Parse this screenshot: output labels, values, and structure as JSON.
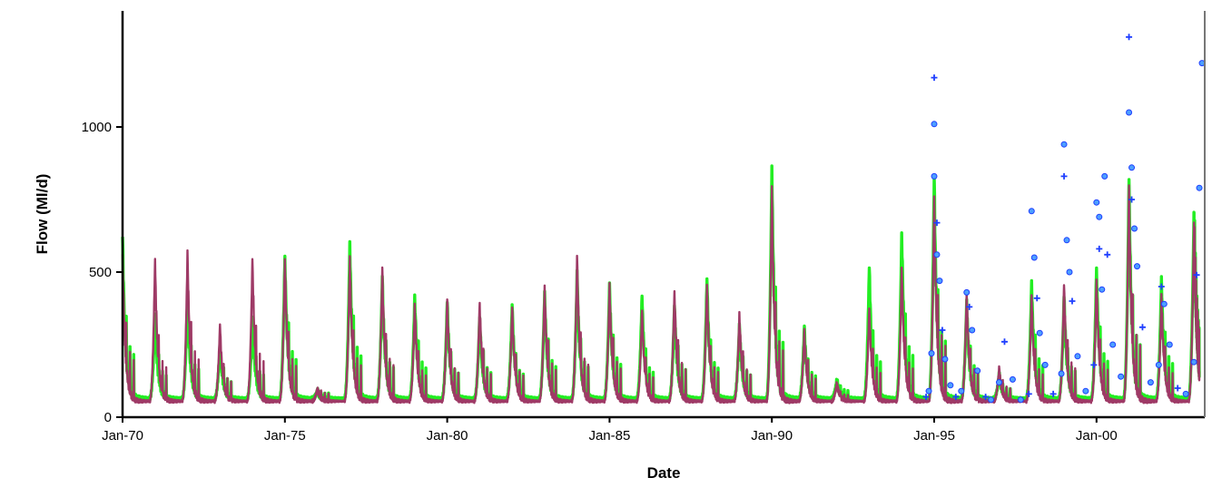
{
  "chart_data": {
    "type": "line",
    "title": "",
    "xlabel": "Date",
    "ylabel": "Flow (Ml/d)",
    "ylim": [
      0,
      1400
    ],
    "xlim": [
      "1970-01",
      "2003-05"
    ],
    "x_ticks": [
      {
        "date": "1970-01",
        "label": "Jan-70"
      },
      {
        "date": "1975-01",
        "label": "Jan-75"
      },
      {
        "date": "1980-01",
        "label": "Jan-80"
      },
      {
        "date": "1985-01",
        "label": "Jan-85"
      },
      {
        "date": "1990-01",
        "label": "Jan-90"
      },
      {
        "date": "1995-01",
        "label": "Jan-95"
      },
      {
        "date": "2000-01",
        "label": "Jan-00"
      }
    ],
    "y_ticks": [
      0,
      500,
      1000
    ],
    "grid": false,
    "legend": "none",
    "colors": {
      "modelled": "#22ee22",
      "simulated": "#9e3a66",
      "observed": "#1f3fff",
      "axis": "#000000"
    },
    "series": [
      {
        "key": "modelled",
        "style": "line",
        "peaks": [
          [
            "1970-01",
            620
          ],
          [
            "1971-01",
            350
          ],
          [
            "1972-01",
            420
          ],
          [
            "1973-01",
            250
          ],
          [
            "1974-01",
            350
          ],
          [
            "1975-01",
            560
          ],
          [
            "1976-01",
            90
          ],
          [
            "1977-01",
            600
          ],
          [
            "1978-01",
            480
          ],
          [
            "1979-01",
            420
          ],
          [
            "1980-01",
            400
          ],
          [
            "1981-01",
            350
          ],
          [
            "1982-01",
            390
          ],
          [
            "1983-01",
            430
          ],
          [
            "1984-01",
            500
          ],
          [
            "1985-01",
            460
          ],
          [
            "1986-01",
            420
          ],
          [
            "1987-01",
            390
          ],
          [
            "1988-01",
            480
          ],
          [
            "1989-01",
            320
          ],
          [
            "1990-01",
            860
          ],
          [
            "1991-01",
            310
          ],
          [
            "1992-01",
            130
          ],
          [
            "1993-01",
            520
          ],
          [
            "1994-01",
            640
          ],
          [
            "1995-01",
            830
          ],
          [
            "1996-01",
            400
          ],
          [
            "1997-01",
            150
          ],
          [
            "1998-01",
            470
          ],
          [
            "1999-01",
            420
          ],
          [
            "2000-01",
            520
          ],
          [
            "2001-01",
            820
          ],
          [
            "2002-01",
            480
          ],
          [
            "2003-01",
            700
          ]
        ],
        "baseline": 65
      },
      {
        "key": "simulated",
        "style": "line",
        "peaks": [
          [
            "1970-01",
            560
          ],
          [
            "1971-01",
            540
          ],
          [
            "1972-01",
            570
          ],
          [
            "1973-01",
            320
          ],
          [
            "1974-01",
            550
          ],
          [
            "1975-01",
            550
          ],
          [
            "1976-01",
            100
          ],
          [
            "1977-01",
            550
          ],
          [
            "1978-01",
            510
          ],
          [
            "1979-01",
            390
          ],
          [
            "1980-01",
            410
          ],
          [
            "1981-01",
            400
          ],
          [
            "1982-01",
            380
          ],
          [
            "1983-01",
            450
          ],
          [
            "1984-01",
            550
          ],
          [
            "1985-01",
            460
          ],
          [
            "1986-01",
            370
          ],
          [
            "1987-01",
            440
          ],
          [
            "1988-01",
            460
          ],
          [
            "1989-01",
            360
          ],
          [
            "1990-01",
            790
          ],
          [
            "1991-01",
            300
          ],
          [
            "1992-01",
            120
          ],
          [
            "1993-01",
            380
          ],
          [
            "1994-01",
            520
          ],
          [
            "1995-01",
            760
          ],
          [
            "1996-01",
            430
          ],
          [
            "1997-01",
            170
          ],
          [
            "1998-01",
            420
          ],
          [
            "1999-01",
            460
          ],
          [
            "2000-01",
            480
          ],
          [
            "2001-01",
            800
          ],
          [
            "2002-01",
            420
          ],
          [
            "2003-01",
            660
          ]
        ],
        "baseline": 55
      },
      {
        "key": "observed",
        "style": "markers",
        "points": [
          [
            "1994-10",
            70
          ],
          [
            "1994-11",
            90
          ],
          [
            "1994-12",
            220
          ],
          [
            "1995-01",
            1170
          ],
          [
            "1995-01",
            1010
          ],
          [
            "1995-01",
            830
          ],
          [
            "1995-02",
            670
          ],
          [
            "1995-02",
            560
          ],
          [
            "1995-03",
            470
          ],
          [
            "1995-04",
            300
          ],
          [
            "1995-05",
            200
          ],
          [
            "1995-07",
            110
          ],
          [
            "1995-09",
            70
          ],
          [
            "1995-11",
            90
          ],
          [
            "1996-01",
            430
          ],
          [
            "1996-02",
            380
          ],
          [
            "1996-03",
            300
          ],
          [
            "1996-05",
            160
          ],
          [
            "1996-08",
            70
          ],
          [
            "1996-10",
            60
          ],
          [
            "1997-01",
            120
          ],
          [
            "1997-03",
            260
          ],
          [
            "1997-06",
            130
          ],
          [
            "1997-09",
            60
          ],
          [
            "1997-12",
            80
          ],
          [
            "1998-01",
            710
          ],
          [
            "1998-02",
            550
          ],
          [
            "1998-03",
            410
          ],
          [
            "1998-04",
            290
          ],
          [
            "1998-06",
            180
          ],
          [
            "1998-09",
            80
          ],
          [
            "1998-12",
            150
          ],
          [
            "1999-01",
            940
          ],
          [
            "1999-01",
            830
          ],
          [
            "1999-02",
            610
          ],
          [
            "1999-03",
            500
          ],
          [
            "1999-04",
            400
          ],
          [
            "1999-06",
            210
          ],
          [
            "1999-09",
            90
          ],
          [
            "1999-12",
            180
          ],
          [
            "2000-01",
            740
          ],
          [
            "2000-02",
            690
          ],
          [
            "2000-02",
            580
          ],
          [
            "2000-03",
            440
          ],
          [
            "2000-04",
            830
          ],
          [
            "2000-05",
            560
          ],
          [
            "2000-07",
            250
          ],
          [
            "2000-10",
            140
          ],
          [
            "2001-01",
            1310
          ],
          [
            "2001-01",
            1050
          ],
          [
            "2001-02",
            860
          ],
          [
            "2001-02",
            750
          ],
          [
            "2001-03",
            650
          ],
          [
            "2001-04",
            520
          ],
          [
            "2001-06",
            310
          ],
          [
            "2001-09",
            120
          ],
          [
            "2001-12",
            180
          ],
          [
            "2002-01",
            450
          ],
          [
            "2002-02",
            390
          ],
          [
            "2002-04",
            250
          ],
          [
            "2002-07",
            100
          ],
          [
            "2002-10",
            80
          ],
          [
            "2003-01",
            190
          ],
          [
            "2003-02",
            490
          ],
          [
            "2003-03",
            790
          ],
          [
            "2003-04",
            1220
          ]
        ]
      }
    ]
  }
}
